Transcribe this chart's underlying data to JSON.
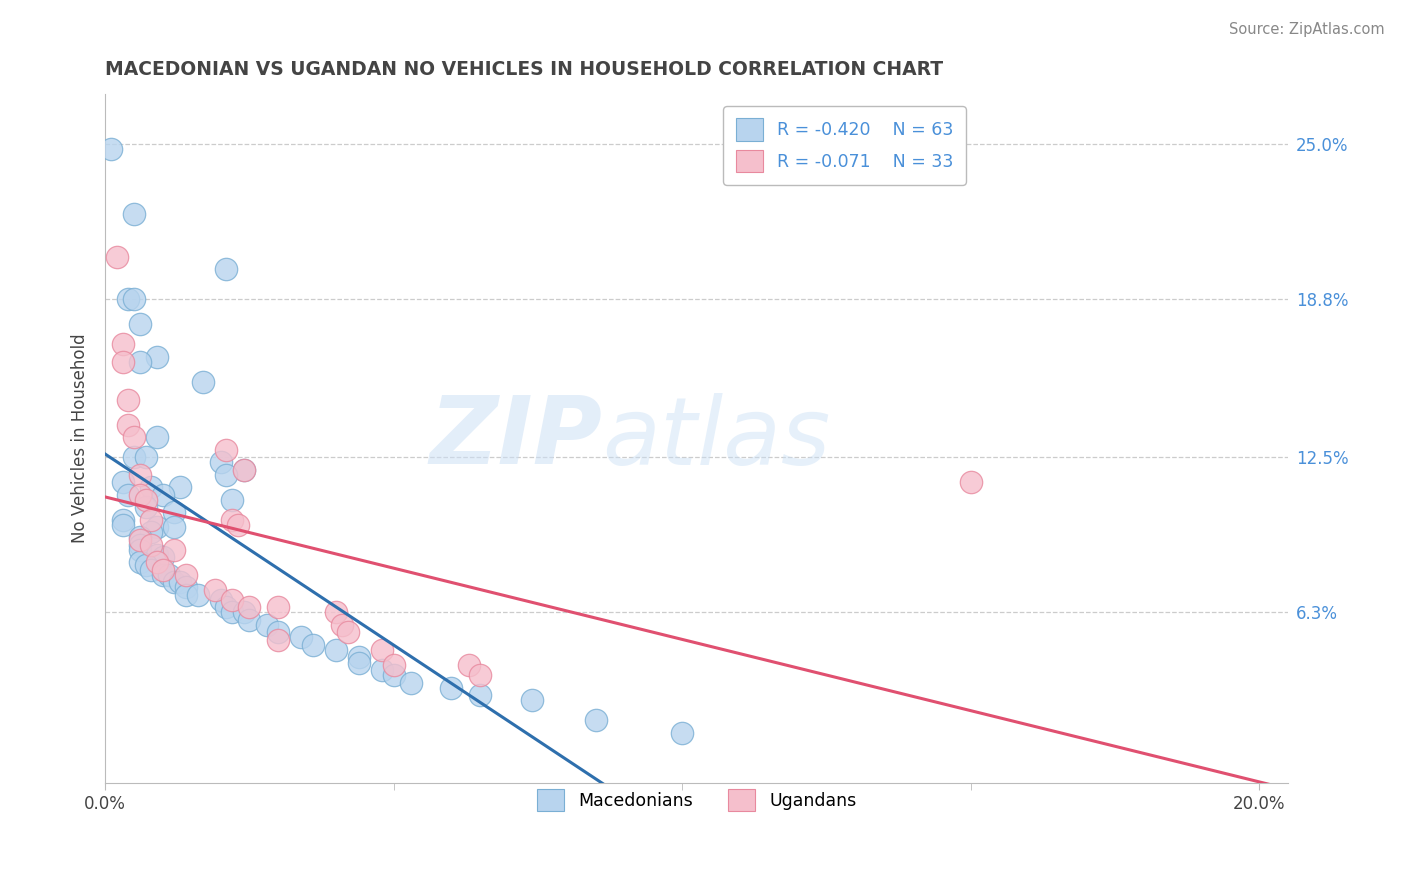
{
  "title": "MACEDONIAN VS UGANDAN NO VEHICLES IN HOUSEHOLD CORRELATION CHART",
  "source": "Source: ZipAtlas.com",
  "ylabel": "No Vehicles in Household",
  "ytick_labels": [
    "6.3%",
    "12.5%",
    "18.8%",
    "25.0%"
  ],
  "ytick_values": [
    0.063,
    0.125,
    0.188,
    0.25
  ],
  "xlim": [
    0.0,
    0.205
  ],
  "ylim": [
    -0.005,
    0.27
  ],
  "macedonian_color": "#b8d4ee",
  "ugandan_color": "#f5bfcc",
  "macedonian_edge": "#7aafd4",
  "ugandan_edge": "#e8899e",
  "macedonian_line_color": "#2e6fad",
  "ugandan_line_color": "#e05070",
  "watermark_zip": "ZIP",
  "watermark_atlas": "atlas",
  "background": "#ffffff",
  "grid_color": "#cccccc",
  "title_color": "#444444",
  "source_color": "#888888",
  "tick_label_color": "#4a90d9",
  "legend_text_color": "#4a90d9",
  "legend_r1": "R = -0.420    N = 63",
  "legend_r2": "R = -0.071    N = 33",
  "bottom_legend_mac": "Macedonians",
  "bottom_legend_uga": "Ugandans",
  "mac_points": [
    [
      0.001,
      0.248
    ],
    [
      0.005,
      0.222
    ],
    [
      0.021,
      0.2
    ],
    [
      0.004,
      0.188
    ],
    [
      0.005,
      0.188
    ],
    [
      0.006,
      0.178
    ],
    [
      0.009,
      0.165
    ],
    [
      0.006,
      0.163
    ],
    [
      0.017,
      0.155
    ],
    [
      0.009,
      0.133
    ],
    [
      0.005,
      0.125
    ],
    [
      0.007,
      0.125
    ],
    [
      0.02,
      0.123
    ],
    [
      0.024,
      0.12
    ],
    [
      0.021,
      0.118
    ],
    [
      0.003,
      0.115
    ],
    [
      0.008,
      0.113
    ],
    [
      0.013,
      0.113
    ],
    [
      0.004,
      0.11
    ],
    [
      0.01,
      0.11
    ],
    [
      0.022,
      0.108
    ],
    [
      0.007,
      0.105
    ],
    [
      0.012,
      0.103
    ],
    [
      0.003,
      0.1
    ],
    [
      0.003,
      0.098
    ],
    [
      0.009,
      0.097
    ],
    [
      0.012,
      0.097
    ],
    [
      0.008,
      0.095
    ],
    [
      0.006,
      0.093
    ],
    [
      0.006,
      0.09
    ],
    [
      0.006,
      0.088
    ],
    [
      0.009,
      0.086
    ],
    [
      0.01,
      0.085
    ],
    [
      0.006,
      0.083
    ],
    [
      0.007,
      0.082
    ],
    [
      0.008,
      0.08
    ],
    [
      0.01,
      0.078
    ],
    [
      0.011,
      0.078
    ],
    [
      0.012,
      0.075
    ],
    [
      0.013,
      0.075
    ],
    [
      0.014,
      0.073
    ],
    [
      0.014,
      0.07
    ],
    [
      0.016,
      0.07
    ],
    [
      0.02,
      0.068
    ],
    [
      0.021,
      0.065
    ],
    [
      0.022,
      0.063
    ],
    [
      0.024,
      0.063
    ],
    [
      0.025,
      0.06
    ],
    [
      0.028,
      0.058
    ],
    [
      0.03,
      0.055
    ],
    [
      0.034,
      0.053
    ],
    [
      0.036,
      0.05
    ],
    [
      0.04,
      0.048
    ],
    [
      0.044,
      0.045
    ],
    [
      0.044,
      0.043
    ],
    [
      0.048,
      0.04
    ],
    [
      0.05,
      0.038
    ],
    [
      0.053,
      0.035
    ],
    [
      0.06,
      0.033
    ],
    [
      0.065,
      0.03
    ],
    [
      0.074,
      0.028
    ],
    [
      0.085,
      0.02
    ],
    [
      0.1,
      0.015
    ]
  ],
  "uga_points": [
    [
      0.002,
      0.205
    ],
    [
      0.003,
      0.17
    ],
    [
      0.003,
      0.163
    ],
    [
      0.004,
      0.148
    ],
    [
      0.004,
      0.138
    ],
    [
      0.005,
      0.133
    ],
    [
      0.021,
      0.128
    ],
    [
      0.024,
      0.12
    ],
    [
      0.006,
      0.118
    ],
    [
      0.006,
      0.11
    ],
    [
      0.007,
      0.108
    ],
    [
      0.008,
      0.1
    ],
    [
      0.022,
      0.1
    ],
    [
      0.023,
      0.098
    ],
    [
      0.006,
      0.092
    ],
    [
      0.008,
      0.09
    ],
    [
      0.012,
      0.088
    ],
    [
      0.009,
      0.083
    ],
    [
      0.01,
      0.08
    ],
    [
      0.014,
      0.078
    ],
    [
      0.019,
      0.072
    ],
    [
      0.022,
      0.068
    ],
    [
      0.025,
      0.065
    ],
    [
      0.03,
      0.065
    ],
    [
      0.04,
      0.063
    ],
    [
      0.041,
      0.058
    ],
    [
      0.042,
      0.055
    ],
    [
      0.03,
      0.052
    ],
    [
      0.048,
      0.048
    ],
    [
      0.05,
      0.042
    ],
    [
      0.063,
      0.042
    ],
    [
      0.065,
      0.038
    ],
    [
      0.15,
      0.115
    ]
  ]
}
